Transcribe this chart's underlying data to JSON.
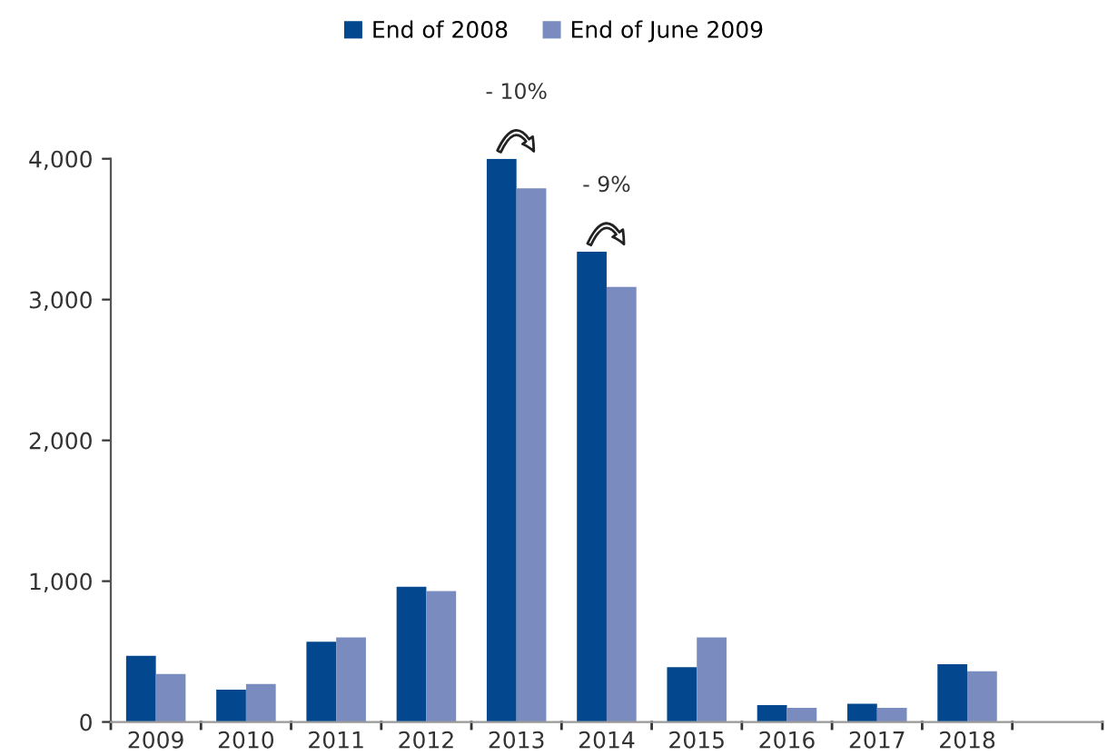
{
  "chart_data": {
    "type": "bar",
    "categories": [
      "2009",
      "2010",
      "2011",
      "2012",
      "2013",
      "2014",
      "2015",
      "2016",
      "2017",
      "2018",
      null
    ],
    "series": [
      {
        "name": "End of 2008",
        "color": "#03488e",
        "values": [
          470,
          230,
          570,
          960,
          4000,
          3340,
          390,
          120,
          130,
          410,
          null
        ]
      },
      {
        "name": "End of June 2009",
        "color": "#7a8cbf",
        "values": [
          340,
          270,
          600,
          930,
          3790,
          3090,
          600,
          100,
          100,
          360,
          null
        ]
      }
    ],
    "ylim": [
      0,
      4000
    ],
    "yticks": [
      {
        "value": 0,
        "label": "0"
      },
      {
        "value": 1000,
        "label": "1,000"
      },
      {
        "value": 2000,
        "label": "2,000"
      },
      {
        "value": 3000,
        "label": "3,000"
      },
      {
        "value": 4000,
        "label": "4,000"
      }
    ],
    "annotations": [
      {
        "text": "- 10%",
        "x": "2013",
        "y": 4000
      },
      {
        "text": "- 9%",
        "x": "2014",
        "y": 3340
      }
    ],
    "legend": "top",
    "grid": false
  }
}
